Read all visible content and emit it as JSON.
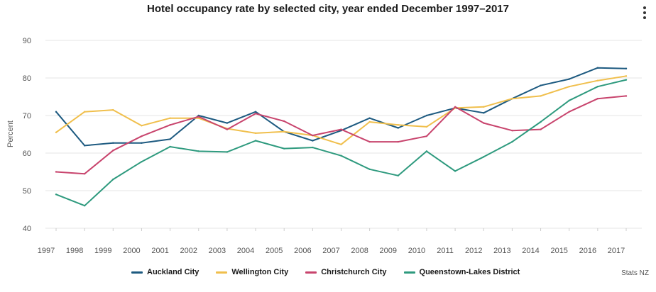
{
  "chart_data": {
    "type": "line",
    "title": "Hotel occupancy rate by selected city, year ended December 1997–2017",
    "ylabel": "Percent",
    "xlabel": "",
    "ylim": [
      40,
      90
    ],
    "y_ticks": [
      40,
      50,
      60,
      70,
      80,
      90
    ],
    "grid": true,
    "legend_position": "bottom",
    "x": [
      "1997",
      "1998",
      "1999",
      "2000",
      "2001",
      "2002",
      "2003",
      "2004",
      "2005",
      "2006",
      "2007",
      "2008",
      "2009",
      "2010",
      "2011",
      "2012",
      "2013",
      "2014",
      "2015",
      "2016",
      "2017"
    ],
    "series": [
      {
        "name": "Auckland City",
        "color": "#1d5a80",
        "values": [
          71.0,
          62.0,
          62.7,
          62.7,
          63.7,
          70.0,
          68.0,
          71.0,
          65.7,
          63.3,
          66.0,
          69.3,
          66.7,
          70.0,
          72.0,
          70.7,
          74.5,
          78.0,
          79.7,
          82.7,
          82.5
        ]
      },
      {
        "name": "Wellington City",
        "color": "#f0bf4c",
        "values": [
          65.5,
          71.0,
          71.5,
          67.3,
          69.3,
          69.3,
          66.5,
          65.3,
          65.7,
          64.7,
          62.3,
          68.3,
          67.5,
          67.0,
          72.0,
          72.3,
          74.5,
          75.2,
          77.7,
          79.3,
          80.5
        ]
      },
      {
        "name": "Christchurch City",
        "color": "#c8446d",
        "values": [
          55.0,
          54.5,
          60.7,
          64.5,
          67.5,
          69.7,
          66.3,
          70.5,
          68.5,
          64.7,
          66.3,
          63.0,
          63.0,
          64.5,
          72.3,
          68.0,
          66.0,
          66.3,
          71.0,
          74.5,
          75.2
        ]
      },
      {
        "name": "Queenstown-Lakes District",
        "color": "#2e9a7e",
        "values": [
          49.0,
          46.0,
          53.0,
          57.7,
          61.7,
          60.5,
          60.3,
          63.3,
          61.2,
          61.5,
          59.3,
          55.7,
          54.0,
          60.5,
          55.2,
          59.0,
          63.0,
          68.3,
          74.0,
          77.7,
          79.5
        ]
      }
    ]
  },
  "ui": {
    "menu_icon": "vertical-ellipsis-icon",
    "credit": "Stats NZ"
  }
}
